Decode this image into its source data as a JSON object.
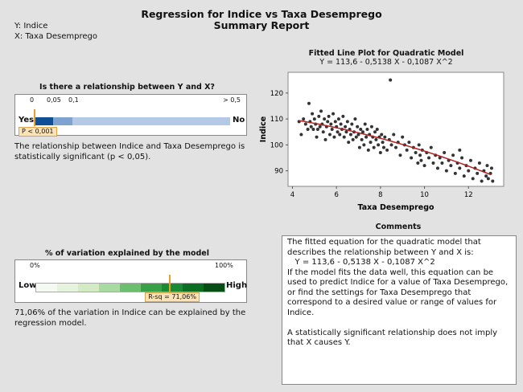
{
  "header": {
    "title": "Regression for Indice vs Taxa Desemprego",
    "subtitle": "Summary Report",
    "y_var": "Y: Indice",
    "x_var": "X: Taxa Desemprego"
  },
  "relationship": {
    "title": "Is there a relationship between Y and X?",
    "ticks": [
      "0",
      "0,05",
      "0,1",
      "> 0,5"
    ],
    "yes_label": "Yes",
    "no_label": "No",
    "p_badge": "P < 0,001",
    "p_value": 0.001,
    "description": "The relationship between Indice and Taxa Desemprego is statistically significant (p < 0,05)."
  },
  "variation": {
    "title": "% of variation explained by the model",
    "tick_left": "0%",
    "tick_right": "100%",
    "low_label": "Low",
    "high_label": "High",
    "rsq_badge": "R-sq = 71,06%",
    "rsq": 0.7106,
    "description": "71,06% of the variation in Indice can be explained by the regression model.",
    "colors": [
      "#f4faf1",
      "#e6f3dc",
      "#d3ebc4",
      "#a8dba2",
      "#6bbf6e",
      "#38a148",
      "#1a8b32",
      "#0c6e23",
      "#064d16"
    ]
  },
  "comments": {
    "title": "Comments",
    "text": "The fitted equation for the quadratic model that describes the relationship between Y and X is:\n   Y = 113,6 - 0,5138 X - 0,1087 X^2\nIf the model fits the data well, this equation can be used to predict Indice for a value of Taxa Desemprego, or find the settings for Taxa Desemprego that correspond to a desired value or range of values for Indice.\n\nA statistically significant relationship does not imply that X causes Y."
  },
  "chart_data": {
    "type": "scatter",
    "title": "Fitted Line Plot for Quadratic Model",
    "subtitle": "Y = 113,6 - 0,5138 X - 0,1087 X^2",
    "xlabel": "Taxa Desemprego",
    "ylabel": "Indice",
    "xlim": [
      3.8,
      13.6
    ],
    "ylim": [
      84,
      128
    ],
    "xticks": [
      4,
      6,
      8,
      10,
      12
    ],
    "yticks": [
      90,
      100,
      110,
      120
    ],
    "fit": {
      "a": 113.6,
      "b": -0.5138,
      "c": -0.1087,
      "x_range": [
        4.3,
        13.0
      ],
      "color": "#b22222"
    },
    "point_color": "#333333",
    "points": [
      [
        4.3,
        109
      ],
      [
        4.4,
        104
      ],
      [
        4.5,
        110
      ],
      [
        4.6,
        108
      ],
      [
        4.7,
        106
      ],
      [
        4.75,
        116
      ],
      [
        4.8,
        109
      ],
      [
        4.85,
        107
      ],
      [
        4.9,
        112
      ],
      [
        4.95,
        106
      ],
      [
        5.0,
        110
      ],
      [
        5.05,
        108
      ],
      [
        5.1,
        103
      ],
      [
        5.15,
        106
      ],
      [
        5.2,
        111
      ],
      [
        5.25,
        107
      ],
      [
        5.3,
        113
      ],
      [
        5.35,
        108
      ],
      [
        5.4,
        105
      ],
      [
        5.45,
        110
      ],
      [
        5.5,
        102
      ],
      [
        5.55,
        107
      ],
      [
        5.6,
        109
      ],
      [
        5.65,
        111
      ],
      [
        5.7,
        104
      ],
      [
        5.75,
        108
      ],
      [
        5.8,
        106
      ],
      [
        5.85,
        112
      ],
      [
        5.9,
        103
      ],
      [
        5.95,
        109
      ],
      [
        6.0,
        107
      ],
      [
        6.05,
        105
      ],
      [
        6.1,
        110
      ],
      [
        6.15,
        104
      ],
      [
        6.2,
        108
      ],
      [
        6.25,
        106
      ],
      [
        6.3,
        111
      ],
      [
        6.35,
        103
      ],
      [
        6.4,
        107
      ],
      [
        6.45,
        105
      ],
      [
        6.5,
        109
      ],
      [
        6.55,
        101
      ],
      [
        6.6,
        106
      ],
      [
        6.65,
        104
      ],
      [
        6.7,
        108
      ],
      [
        6.75,
        102
      ],
      [
        6.8,
        105
      ],
      [
        6.85,
        110
      ],
      [
        6.9,
        103
      ],
      [
        6.95,
        107
      ],
      [
        7.0,
        104
      ],
      [
        7.05,
        99
      ],
      [
        7.1,
        106
      ],
      [
        7.15,
        102
      ],
      [
        7.2,
        105
      ],
      [
        7.25,
        100
      ],
      [
        7.3,
        108
      ],
      [
        7.35,
        103
      ],
      [
        7.4,
        106
      ],
      [
        7.45,
        98
      ],
      [
        7.5,
        104
      ],
      [
        7.55,
        101
      ],
      [
        7.6,
        107
      ],
      [
        7.65,
        103
      ],
      [
        7.7,
        99
      ],
      [
        7.75,
        105
      ],
      [
        7.8,
        102
      ],
      [
        7.85,
        106
      ],
      [
        7.9,
        100
      ],
      [
        7.95,
        103
      ],
      [
        8.0,
        97
      ],
      [
        8.05,
        104
      ],
      [
        8.1,
        101
      ],
      [
        8.15,
        99
      ],
      [
        8.2,
        103
      ],
      [
        8.3,
        98
      ],
      [
        8.4,
        102
      ],
      [
        8.45,
        125
      ],
      [
        8.5,
        100
      ],
      [
        8.6,
        104
      ],
      [
        8.7,
        99
      ],
      [
        8.8,
        101
      ],
      [
        8.9,
        96
      ],
      [
        9.0,
        103
      ],
      [
        9.1,
        100
      ],
      [
        9.2,
        98
      ],
      [
        9.3,
        101
      ],
      [
        9.4,
        95
      ],
      [
        9.5,
        99
      ],
      [
        9.6,
        97
      ],
      [
        9.7,
        93
      ],
      [
        9.75,
        100
      ],
      [
        9.8,
        96
      ],
      [
        9.85,
        94
      ],
      [
        9.9,
        98
      ],
      [
        10.0,
        92
      ],
      [
        10.1,
        97
      ],
      [
        10.2,
        95
      ],
      [
        10.3,
        99
      ],
      [
        10.4,
        93
      ],
      [
        10.5,
        96
      ],
      [
        10.6,
        91
      ],
      [
        10.7,
        95
      ],
      [
        10.8,
        93
      ],
      [
        10.9,
        97
      ],
      [
        11.0,
        90
      ],
      [
        11.1,
        94
      ],
      [
        11.2,
        92
      ],
      [
        11.3,
        96
      ],
      [
        11.4,
        89
      ],
      [
        11.5,
        93
      ],
      [
        11.6,
        91
      ],
      [
        11.7,
        95
      ],
      [
        11.8,
        88
      ],
      [
        11.9,
        92
      ],
      [
        12.0,
        90
      ],
      [
        12.1,
        94
      ],
      [
        12.2,
        87
      ],
      [
        12.3,
        91
      ],
      [
        12.4,
        89
      ],
      [
        12.5,
        93
      ],
      [
        12.6,
        86
      ],
      [
        12.7,
        90
      ],
      [
        12.8,
        88
      ],
      [
        12.85,
        92
      ],
      [
        12.9,
        87
      ],
      [
        13.0,
        89
      ],
      [
        13.05,
        91
      ],
      [
        13.1,
        86
      ],
      [
        11.6,
        98
      ]
    ]
  }
}
